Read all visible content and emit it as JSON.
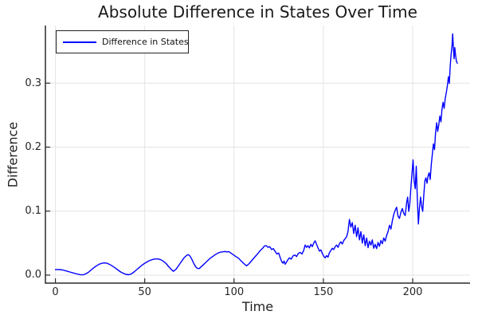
{
  "colors": {
    "line": "#0000ff",
    "grid": "#e4e4e4",
    "axis": "#2a2a2a",
    "text": "#1f1f1f",
    "background": "#ffffff"
  },
  "chart_data": {
    "type": "line",
    "title": "Absolute Difference in States Over Time",
    "xlabel": "Time",
    "ylabel": "Difference",
    "xlim": [
      -5.6,
      232.1
    ],
    "ylim": [
      -0.0125,
      0.39
    ],
    "grid": true,
    "x_ticks": {
      "values": [
        0,
        50,
        100,
        150,
        200
      ],
      "labels": [
        "0",
        "50",
        "100",
        "150",
        "200"
      ]
    },
    "y_ticks": {
      "values": [
        0.0,
        0.1,
        0.2,
        0.3
      ],
      "labels": [
        "0.0",
        "0.1",
        "0.2",
        "0.3"
      ]
    },
    "legend": {
      "position": "top-left",
      "entries": [
        "Difference in States"
      ]
    },
    "series": [
      {
        "name": "Difference in States",
        "color": "#0000ff",
        "x": [
          0,
          2,
          4,
          6,
          8,
          10,
          12,
          14,
          15.5,
          17,
          18.5,
          20,
          21.5,
          23,
          24.5,
          26,
          27.5,
          29,
          30.5,
          32,
          33.5,
          35,
          36.5,
          38,
          39.5,
          41,
          42.5,
          44,
          45.5,
          47,
          48.5,
          50,
          51.5,
          53,
          54.5,
          56,
          57.5,
          59,
          60.5,
          62,
          63.5,
          65,
          66,
          67.5,
          69,
          70.5,
          72,
          73.5,
          74.5,
          75.5,
          76.5,
          77.5,
          78.5,
          79.5,
          80.5,
          82,
          83.5,
          85,
          86.5,
          88,
          89.5,
          91,
          92.5,
          94,
          95,
          96,
          97,
          98,
          99.5,
          101,
          102.5,
          104,
          105.5,
          107,
          108.5,
          110,
          111.5,
          113,
          114.5,
          116,
          117,
          118,
          119,
          120,
          121,
          122,
          123,
          124,
          125,
          126,
          126.7,
          127.4,
          128,
          128.6,
          129.3,
          130,
          131,
          132,
          133,
          134,
          135,
          136,
          137,
          138,
          139,
          139.8,
          140.6,
          141.4,
          142.2,
          143,
          143.8,
          144.6,
          145.4,
          146.2,
          147,
          147.8,
          148.6,
          149.4,
          150.2,
          151,
          151.8,
          152.6,
          153.4,
          154.2,
          155,
          155.8,
          156.6,
          157.4,
          158.2,
          159,
          159.8,
          160.6,
          161.4,
          162.2,
          163,
          163.8,
          164.6,
          165.4,
          166.2,
          167,
          167.8,
          168.6,
          169.4,
          170.2,
          171,
          171.8,
          172.6,
          173.4,
          174.2,
          175,
          175.8,
          176.6,
          177.4,
          178.2,
          179,
          179.8,
          180.6,
          181.4,
          182.2,
          183,
          183.8,
          184.6,
          185.4,
          186.2,
          187,
          187.8,
          188.6,
          189.4,
          190.2,
          191,
          191.8,
          192.6,
          193.4,
          194.2,
          195,
          195.8,
          196.6,
          197.2,
          197.8,
          198.4,
          199,
          199.6,
          200.2,
          200.8,
          201.4,
          202,
          202.6,
          203.2,
          203.8,
          204.4,
          205,
          205.6,
          206.2,
          206.8,
          207.4,
          208,
          208.6,
          209.2,
          209.8,
          210.4,
          211,
          211.6,
          212.2,
          212.8,
          213.4,
          214,
          214.6,
          215.2,
          215.8,
          216.4,
          217,
          217.6,
          218.2,
          218.8,
          219.4,
          220,
          220.5,
          221,
          221.5,
          222,
          222.4,
          222.8,
          223.2,
          223.6,
          224,
          224.5,
          225
        ],
        "y": [
          0.0085,
          0.0088,
          0.008,
          0.0066,
          0.005,
          0.0033,
          0.0018,
          0.0007,
          0.0004,
          0.002,
          0.0045,
          0.008,
          0.0115,
          0.0145,
          0.017,
          0.0185,
          0.019,
          0.0185,
          0.0165,
          0.014,
          0.011,
          0.008,
          0.005,
          0.0028,
          0.0012,
          0.0006,
          0.002,
          0.005,
          0.0085,
          0.012,
          0.0155,
          0.0185,
          0.021,
          0.023,
          0.0245,
          0.0253,
          0.0252,
          0.024,
          0.0215,
          0.018,
          0.013,
          0.0085,
          0.006,
          0.009,
          0.015,
          0.021,
          0.027,
          0.031,
          0.032,
          0.029,
          0.024,
          0.018,
          0.013,
          0.0104,
          0.0103,
          0.014,
          0.018,
          0.022,
          0.026,
          0.029,
          0.032,
          0.0345,
          0.036,
          0.0365,
          0.037,
          0.0362,
          0.0368,
          0.035,
          0.032,
          0.029,
          0.0265,
          0.022,
          0.018,
          0.0145,
          0.018,
          0.023,
          0.028,
          0.0325,
          0.038,
          0.042,
          0.0455,
          0.046,
          0.0435,
          0.0445,
          0.04,
          0.0415,
          0.037,
          0.033,
          0.0345,
          0.026,
          0.021,
          0.0185,
          0.022,
          0.017,
          0.02,
          0.0235,
          0.027,
          0.025,
          0.03,
          0.0315,
          0.029,
          0.034,
          0.0355,
          0.033,
          0.0385,
          0.047,
          0.0435,
          0.046,
          0.0425,
          0.048,
          0.0445,
          0.05,
          0.0535,
          0.048,
          0.0425,
          0.0375,
          0.0395,
          0.034,
          0.0295,
          0.027,
          0.0305,
          0.028,
          0.035,
          0.0385,
          0.042,
          0.04,
          0.0445,
          0.047,
          0.0435,
          0.049,
          0.052,
          0.0485,
          0.054,
          0.057,
          0.06,
          0.068,
          0.087,
          0.075,
          0.082,
          0.065,
          0.078,
          0.06,
          0.074,
          0.055,
          0.068,
          0.05,
          0.063,
          0.046,
          0.058,
          0.043,
          0.053,
          0.047,
          0.055,
          0.042,
          0.048,
          0.0415,
          0.051,
          0.045,
          0.054,
          0.049,
          0.058,
          0.053,
          0.062,
          0.068,
          0.078,
          0.072,
          0.085,
          0.095,
          0.101,
          0.106,
          0.092,
          0.0885,
          0.098,
          0.104,
          0.0965,
          0.093,
          0.113,
          0.122,
          0.0995,
          0.112,
          0.137,
          0.158,
          0.18,
          0.148,
          0.135,
          0.17,
          0.118,
          0.08,
          0.105,
          0.122,
          0.108,
          0.0995,
          0.124,
          0.147,
          0.152,
          0.1435,
          0.155,
          0.16,
          0.1495,
          0.172,
          0.189,
          0.205,
          0.196,
          0.222,
          0.238,
          0.2245,
          0.235,
          0.2485,
          0.2395,
          0.259,
          0.27,
          0.2605,
          0.2755,
          0.285,
          0.2955,
          0.31,
          0.2995,
          0.326,
          0.3445,
          0.358,
          0.377,
          0.356,
          0.338,
          0.3555,
          0.344,
          0.3335,
          0.331
        ]
      }
    ]
  }
}
